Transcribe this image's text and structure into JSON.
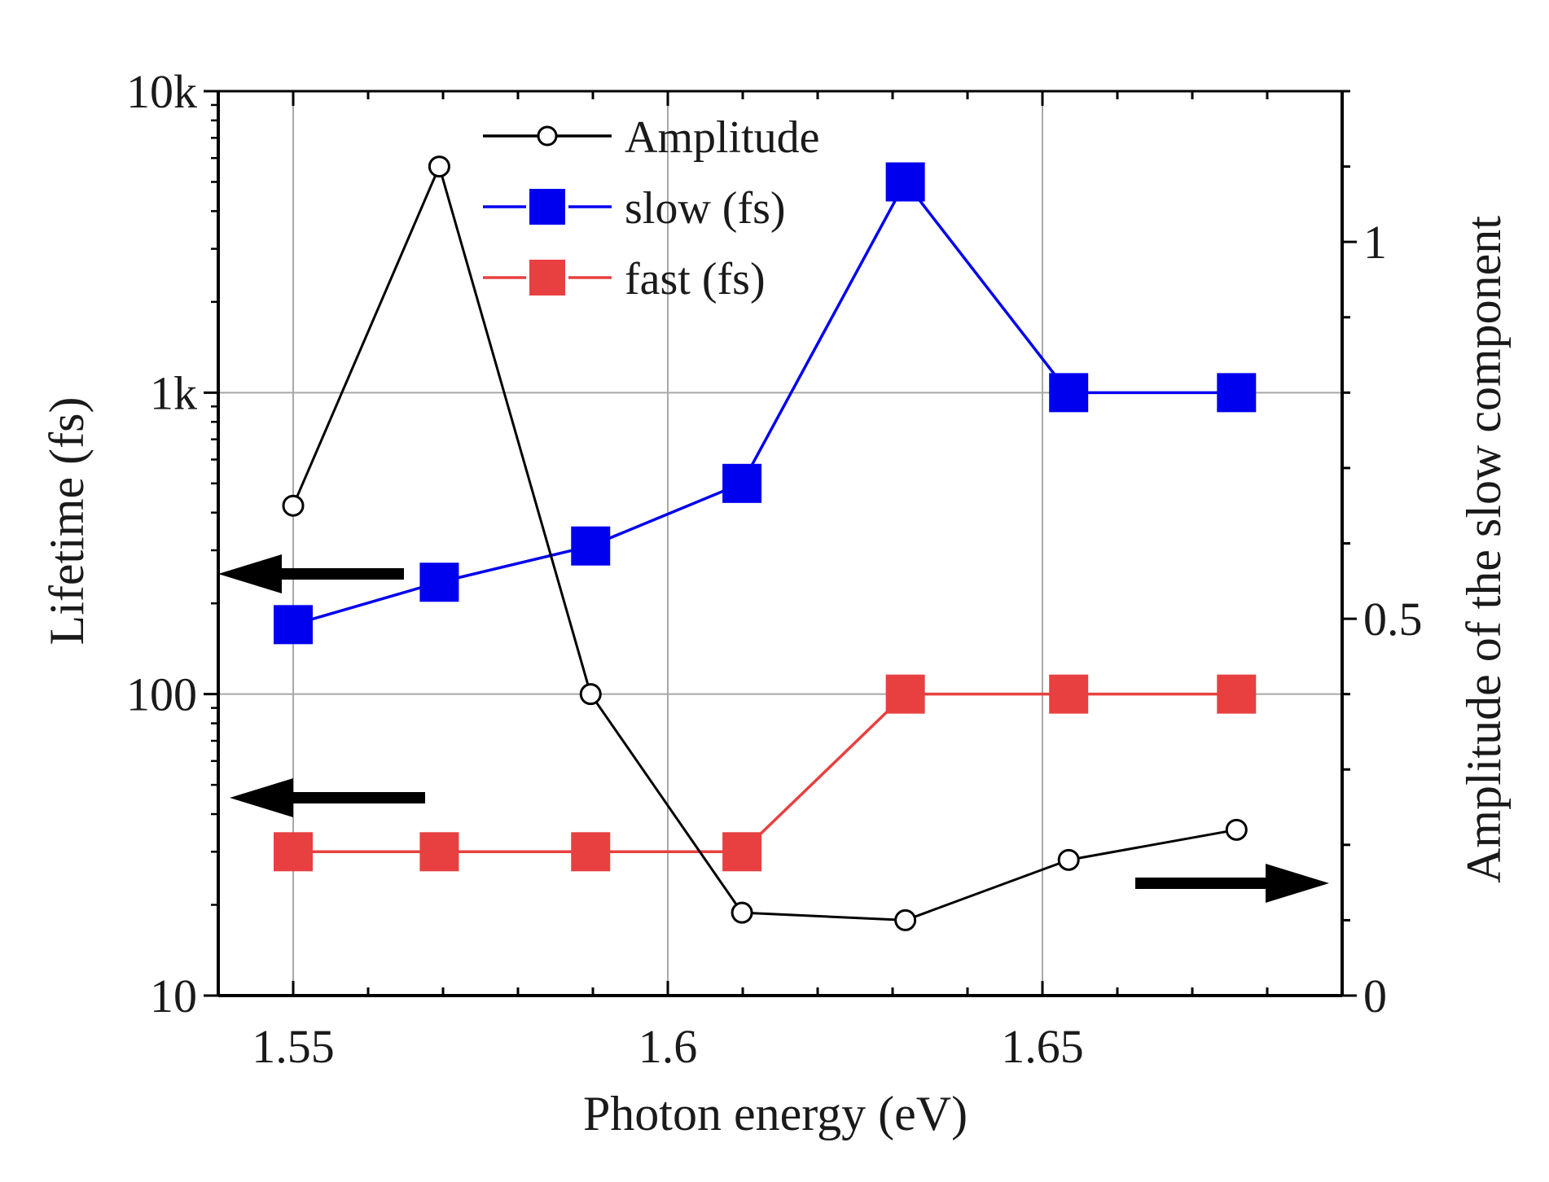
{
  "chart_data": {
    "type": "line",
    "title": "",
    "xlabel": "Photon energy (eV)",
    "ylabel_left": "Lifetime (fs)",
    "ylabel_right": "Amplitude of the slow component",
    "xlim": [
      1.54,
      1.69
    ],
    "ylim_left": [
      10,
      10000
    ],
    "yscale_left": "log",
    "ylim_right": [
      0,
      1.2
    ],
    "x_ticks": [
      1.55,
      1.6,
      1.65
    ],
    "x_tick_labels": [
      "1.55",
      "1.6",
      "1.65"
    ],
    "y_left_ticks": [
      10,
      100,
      1000,
      10000
    ],
    "y_left_tick_labels": [
      "10",
      "100",
      "1k",
      "10k"
    ],
    "y_right_ticks": [
      0,
      0.5,
      1
    ],
    "y_right_tick_labels": [
      "0",
      "0.5",
      "1"
    ],
    "grid": true,
    "legend_position": "top-center",
    "series": [
      {
        "name": "Amplitude",
        "axis": "right",
        "color": "#000000",
        "marker": "open-circle",
        "x": [
          1.55,
          1.5695,
          1.5897,
          1.6099,
          1.6317,
          1.6535,
          1.6759
        ],
        "values": [
          0.65,
          1.1,
          0.4,
          0.11,
          0.1,
          0.18,
          0.22
        ]
      },
      {
        "name": "slow (fs)",
        "axis": "left",
        "color": "#0000ee",
        "marker": "filled-square",
        "x": [
          1.55,
          1.5695,
          1.5897,
          1.6099,
          1.6317,
          1.6535,
          1.6759
        ],
        "values": [
          170,
          235,
          310,
          500,
          5000,
          1000,
          1000
        ]
      },
      {
        "name": "fast (fs)",
        "axis": "left",
        "color": "#e84040",
        "marker": "filled-square",
        "x": [
          1.55,
          1.5695,
          1.5897,
          1.6099,
          1.6317,
          1.6535,
          1.6759
        ],
        "values": [
          30,
          30,
          30,
          30,
          100,
          100,
          100
        ]
      }
    ],
    "annotations": [
      {
        "type": "arrow",
        "direction": "left",
        "points_to": "left axis",
        "series": "slow (fs)"
      },
      {
        "type": "arrow",
        "direction": "left",
        "points_to": "left axis",
        "series": "fast (fs)"
      },
      {
        "type": "arrow",
        "direction": "right",
        "points_to": "right axis",
        "series": "Amplitude"
      }
    ]
  }
}
